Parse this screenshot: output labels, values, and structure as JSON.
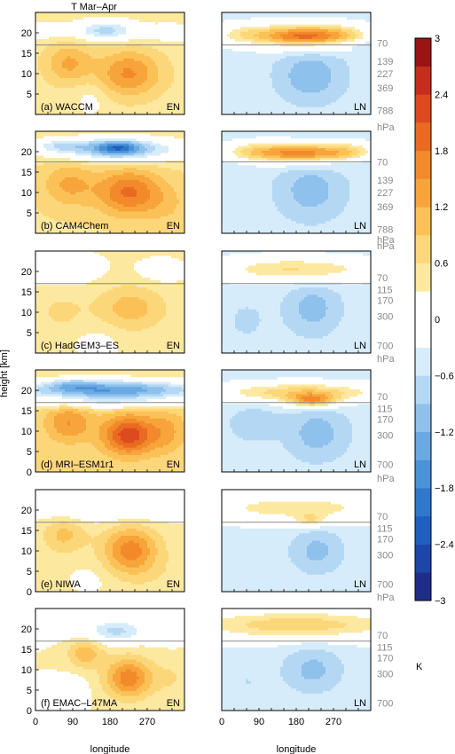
{
  "figure": {
    "title": "T Mar–Apr",
    "ylabel": "height [km]",
    "xlabel": "longitude",
    "x_ticks": [
      "0",
      "90",
      "180",
      "270"
    ],
    "colorbar_unit": "K"
  },
  "colors": {
    "levels": [
      -3,
      -2.7,
      -2.4,
      -2.1,
      -1.8,
      -1.5,
      -1.2,
      -0.9,
      -0.6,
      -0.3,
      0.3,
      0.6,
      0.9,
      1.2,
      1.5,
      1.8,
      2.1,
      2.4,
      2.7,
      3
    ],
    "palette": [
      "#1b1b6e",
      "#1f2d8a",
      "#1c46a8",
      "#1f5fbf",
      "#2f78cc",
      "#4b92d8",
      "#6aa9e2",
      "#8ec1ec",
      "#b4d8f4",
      "#d6ecfa",
      "#ffffff",
      "#fde8a0",
      "#fcd77a",
      "#fbc157",
      "#f7a43a",
      "#f28a2b",
      "#ea6a22",
      "#dd4a1f",
      "#c52e1c",
      "#9a1414",
      "#6b0a0a"
    ]
  },
  "chart_data": {
    "type": "heatmap",
    "title": "T Mar–Apr",
    "xlabel": "longitude",
    "ylabel": "height [km]",
    "xlim": [
      0,
      360
    ],
    "ylim": [
      0,
      25
    ],
    "x_ticks": [
      0,
      90,
      180,
      270
    ],
    "colorbar": {
      "ticks": [
        3,
        2.4,
        1.8,
        1.2,
        0.6,
        0,
        -0.6,
        -1.2,
        -1.8,
        -2.4,
        -3
      ],
      "tick_labels": [
        "3",
        "2.4",
        "1.8",
        "1.2",
        "0.6",
        "0",
        "−0.6",
        "−1.2",
        "−1.8",
        "−2.4",
        "−3"
      ],
      "unit": "K"
    },
    "panels": [
      {
        "label": "(a) WACCM",
        "y_ticks": [
          5,
          10,
          15,
          20
        ],
        "pressure_labels": [
          "70",
          "139",
          "227",
          "369",
          "788",
          "hPa"
        ],
        "pressure_heights_km": [
          17.5,
          13.0,
          10.0,
          6.5,
          1.0,
          -3.0
        ],
        "tropopause_km": 17,
        "en": {
          "tag": "EN",
          "background": 0.45,
          "features": [
            {
              "x": 225,
              "y": 10,
              "sx": 55,
              "sy": 4,
              "v": 1.1
            },
            {
              "x": 80,
              "y": 12.5,
              "sx": 40,
              "sy": 3.5,
              "v": 0.8
            },
            {
              "x": 170,
              "y": 20.5,
              "sx": 55,
              "sy": 1.7,
              "v": -1.2
            },
            {
              "x": 330,
              "y": 20,
              "sx": 40,
              "sy": 1.5,
              "v": -0.5
            },
            {
              "x": 20,
              "y": 20.5,
              "sx": 35,
              "sy": 1.5,
              "v": -0.4
            },
            {
              "x": 135,
              "y": 4,
              "sx": 30,
              "sy": 3.5,
              "v": -0.3
            }
          ]
        },
        "ln": {
          "tag": "LN",
          "background": -0.45,
          "features": [
            {
              "x": 200,
              "y": 19,
              "sx": 70,
              "sy": 2,
              "v": 2.3
            },
            {
              "x": 60,
              "y": 19.5,
              "sx": 60,
              "sy": 2,
              "v": 0.9
            },
            {
              "x": 300,
              "y": 19.5,
              "sx": 50,
              "sy": 2,
              "v": 0.7
            },
            {
              "x": 215,
              "y": 9.5,
              "sx": 55,
              "sy": 4.5,
              "v": -0.7
            },
            {
              "x": 250,
              "y": 17.2,
              "sx": 110,
              "sy": 0.8,
              "v": -0.5
            }
          ]
        }
      },
      {
        "label": "(b) CAM4Chem",
        "y_ticks": [
          5,
          10,
          15,
          20
        ],
        "pressure_labels": [
          "70",
          "139",
          "227",
          "369",
          "788",
          "hPa"
        ],
        "pressure_heights_km": [
          17.5,
          13.0,
          10.0,
          6.5,
          1.0,
          -3.0
        ],
        "tropopause_km": 17.5,
        "en": {
          "tag": "EN",
          "background": 0.55,
          "features": [
            {
              "x": 200,
              "y": 20.5,
              "sx": 110,
              "sy": 2,
              "v": -1.6
            },
            {
              "x": 200,
              "y": 21,
              "sx": 35,
              "sy": 1.2,
              "v": -1.2
            },
            {
              "x": 60,
              "y": 21.5,
              "sx": 50,
              "sy": 1.2,
              "v": -0.7
            },
            {
              "x": 225,
              "y": 10,
              "sx": 55,
              "sy": 4,
              "v": 1.3
            },
            {
              "x": 80,
              "y": 12,
              "sx": 45,
              "sy": 4,
              "v": 0.7
            },
            {
              "x": 320,
              "y": 7,
              "sx": 40,
              "sy": 4,
              "v": 0.3
            }
          ]
        },
        "ln": {
          "tag": "LN",
          "background": -0.5,
          "features": [
            {
              "x": 200,
              "y": 19.5,
              "sx": 75,
              "sy": 1.8,
              "v": 2.0
            },
            {
              "x": 80,
              "y": 20,
              "sx": 60,
              "sy": 1.8,
              "v": 1.0
            },
            {
              "x": 310,
              "y": 20,
              "sx": 50,
              "sy": 1.8,
              "v": 0.8
            },
            {
              "x": 215,
              "y": 10.5,
              "sx": 50,
              "sy": 4.5,
              "v": -0.6
            },
            {
              "x": 240,
              "y": 17.5,
              "sx": 110,
              "sy": 0.8,
              "v": -0.4
            }
          ]
        }
      },
      {
        "label": "(c) HadGEM3–ES",
        "y_ticks": [
          5,
          10,
          15,
          20
        ],
        "pressure_labels": [
          "hPa",
          "70",
          "115",
          "170",
          "300",
          "700"
        ],
        "pressure_heights_km": [
          27.8,
          18.5,
          15.5,
          12.9,
          9.0,
          1.9
        ],
        "tropopause_km": 17,
        "en": {
          "tag": "EN",
          "background": 0.35,
          "features": [
            {
              "x": 70,
              "y": 20.5,
              "sx": 55,
              "sy": 2.5,
              "v": -0.5
            },
            {
              "x": 230,
              "y": 11,
              "sx": 60,
              "sy": 4,
              "v": 0.7
            },
            {
              "x": 60,
              "y": 10,
              "sx": 45,
              "sy": 4,
              "v": 0.3
            },
            {
              "x": 300,
              "y": 20,
              "sx": 40,
              "sy": 2,
              "v": -0.3
            },
            {
              "x": 150,
              "y": 3,
              "sx": 40,
              "sy": 3,
              "v": -0.2
            }
          ]
        },
        "ln": {
          "tag": "LN",
          "background": -0.45,
          "features": [
            {
              "x": 180,
              "y": 20.5,
              "sx": 140,
              "sy": 2.2,
              "v": 1.1
            },
            {
              "x": 220,
              "y": 11,
              "sx": 45,
              "sy": 4.5,
              "v": -0.6
            },
            {
              "x": 60,
              "y": 8,
              "sx": 40,
              "sy": 4,
              "v": -0.2
            }
          ]
        }
      },
      {
        "label": "(d) MRI–ESM1r1",
        "y_ticks": [
          0,
          5,
          10,
          15,
          20
        ],
        "pressure_labels": [
          "hPa",
          "70",
          "115",
          "170",
          "300",
          "700"
        ],
        "pressure_heights_km": [
          27.8,
          18.5,
          15.5,
          12.9,
          9.0,
          1.9
        ],
        "tropopause_km": 17,
        "en": {
          "tag": "EN",
          "background": 0.6,
          "features": [
            {
              "x": 180,
              "y": 20,
              "sx": 170,
              "sy": 1.8,
              "v": -2.1
            },
            {
              "x": 90,
              "y": 21.5,
              "sx": 40,
              "sy": 1,
              "v": -0.6
            },
            {
              "x": 225,
              "y": 9,
              "sx": 45,
              "sy": 3.5,
              "v": 1.7
            },
            {
              "x": 80,
              "y": 12,
              "sx": 40,
              "sy": 3.5,
              "v": 0.9
            },
            {
              "x": 320,
              "y": 10,
              "sx": 35,
              "sy": 4,
              "v": 0.6
            },
            {
              "x": 180,
              "y": 16.5,
              "sx": 160,
              "sy": 0.9,
              "v": -0.6
            }
          ]
        },
        "ln": {
          "tag": "LN",
          "background": -0.5,
          "features": [
            {
              "x": 190,
              "y": 19.5,
              "sx": 150,
              "sy": 1.8,
              "v": 1.3
            },
            {
              "x": 220,
              "y": 17.5,
              "sx": 40,
              "sy": 1.2,
              "v": 1.5
            },
            {
              "x": 230,
              "y": 9.5,
              "sx": 45,
              "sy": 4,
              "v": -0.6
            },
            {
              "x": 80,
              "y": 12,
              "sx": 40,
              "sy": 3,
              "v": -0.3
            }
          ]
        }
      },
      {
        "label": "(e) NIWA",
        "y_ticks": [
          0,
          5,
          10,
          15,
          20
        ],
        "pressure_labels": [
          "hPa",
          "70",
          "115",
          "170",
          "300",
          "700"
        ],
        "pressure_heights_km": [
          27.8,
          18.5,
          15.5,
          12.9,
          9.0,
          1.9
        ],
        "tropopause_km": 17,
        "en": {
          "tag": "EN",
          "background": 0.4,
          "features": [
            {
              "x": 180,
              "y": 21,
              "sx": 170,
              "sy": 2.5,
              "v": -0.7
            },
            {
              "x": 230,
              "y": 10,
              "sx": 45,
              "sy": 4,
              "v": 1.3
            },
            {
              "x": 70,
              "y": 14,
              "sx": 35,
              "sy": 3,
              "v": 0.6
            },
            {
              "x": 130,
              "y": 3,
              "sx": 40,
              "sy": 3,
              "v": -0.2
            },
            {
              "x": 300,
              "y": 4,
              "sx": 45,
              "sy": 3,
              "v": 0.1
            }
          ]
        },
        "ln": {
          "tag": "LN",
          "background": -0.4,
          "features": [
            {
              "x": 180,
              "y": 20.5,
              "sx": 170,
              "sy": 2.5,
              "v": 0.9
            },
            {
              "x": 215,
              "y": 17.5,
              "sx": 25,
              "sy": 1.2,
              "v": 0.7
            },
            {
              "x": 230,
              "y": 10,
              "sx": 45,
              "sy": 4,
              "v": -0.6
            },
            {
              "x": 60,
              "y": 6,
              "sx": 45,
              "sy": 4,
              "v": -0.2
            }
          ]
        }
      },
      {
        "label": "(f) EMAC–L47MA",
        "y_ticks": [
          0,
          5,
          10,
          15,
          20
        ],
        "pressure_labels": [
          "hPa",
          "70",
          "115",
          "170",
          "300",
          "700"
        ],
        "pressure_heights_km": [
          27.8,
          18.5,
          15.5,
          12.9,
          9.0,
          1.9
        ],
        "tropopause_km": 17,
        "en": {
          "tag": "EN",
          "background": 0.3,
          "features": [
            {
              "x": 195,
              "y": 19.5,
              "sx": 50,
              "sy": 2,
              "v": -1.0
            },
            {
              "x": 60,
              "y": 21,
              "sx": 40,
              "sy": 2,
              "v": -0.4
            },
            {
              "x": 320,
              "y": 20,
              "sx": 30,
              "sy": 2,
              "v": -0.4
            },
            {
              "x": 225,
              "y": 8,
              "sx": 40,
              "sy": 3.5,
              "v": 1.4
            },
            {
              "x": 120,
              "y": 14,
              "sx": 30,
              "sy": 2.5,
              "v": 0.8
            },
            {
              "x": 90,
              "y": 5,
              "sx": 25,
              "sy": 2.5,
              "v": -0.3
            },
            {
              "x": 330,
              "y": 8,
              "sx": 35,
              "sy": 3,
              "v": 0.3
            }
          ]
        },
        "ln": {
          "tag": "LN",
          "background": -0.4,
          "features": [
            {
              "x": 180,
              "y": 21,
              "sx": 200,
              "sy": 2.6,
              "v": 1.2
            },
            {
              "x": 220,
              "y": 10,
              "sx": 50,
              "sy": 4,
              "v": -0.6
            },
            {
              "x": 60,
              "y": 7,
              "sx": 40,
              "sy": 4,
              "v": -0.2
            }
          ]
        }
      }
    ]
  }
}
